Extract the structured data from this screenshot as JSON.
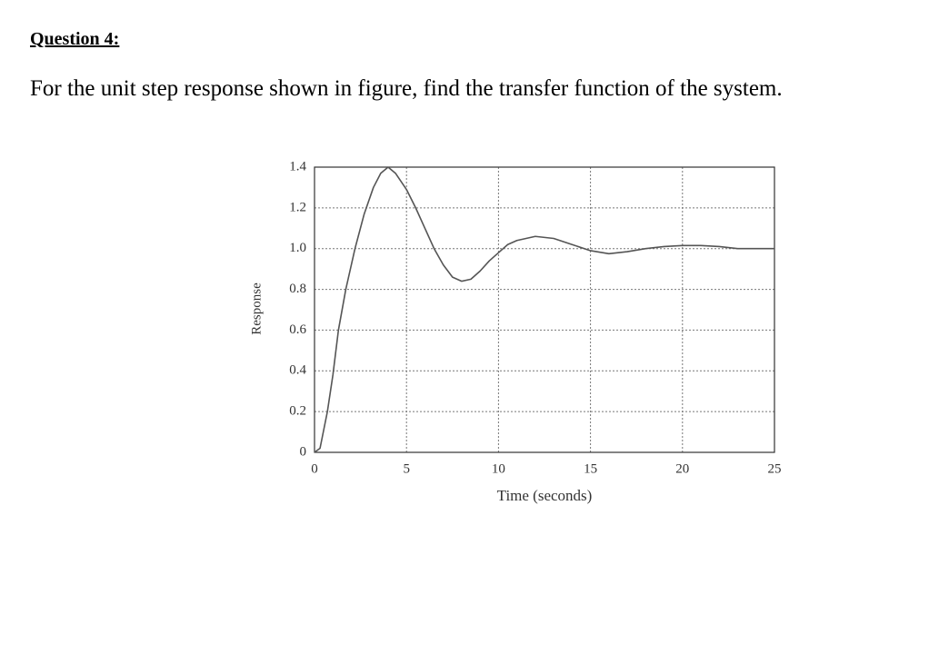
{
  "header": {
    "title": "Question 4:"
  },
  "question": "For the unit step response shown in figure, find the transfer function of the system.",
  "chart_data": {
    "type": "line",
    "xlabel": "Time (seconds)",
    "ylabel": "Response",
    "x": [
      0,
      0.3,
      0.7,
      1,
      1.3,
      1.7,
      2.2,
      2.7,
      3.2,
      3.6,
      4,
      4.4,
      5,
      5.5,
      6,
      6.5,
      7,
      7.5,
      8,
      8.5,
      9,
      9.5,
      10,
      10.5,
      11,
      12,
      13,
      14,
      15,
      16,
      17,
      18,
      19,
      20,
      21,
      22,
      23,
      24,
      25
    ],
    "series": [
      {
        "color": "#555555",
        "values": [
          0,
          0.02,
          0.2,
          0.38,
          0.6,
          0.8,
          1.0,
          1.17,
          1.3,
          1.37,
          1.4,
          1.37,
          1.29,
          1.2,
          1.1,
          1.0,
          0.92,
          0.86,
          0.84,
          0.85,
          0.89,
          0.94,
          0.98,
          1.02,
          1.04,
          1.06,
          1.05,
          1.02,
          0.99,
          0.975,
          0.985,
          1.0,
          1.01,
          1.015,
          1.015,
          1.01,
          1.0,
          1.0,
          1.0
        ]
      }
    ],
    "xlim": [
      0,
      25
    ],
    "xticks": [
      0,
      5,
      10,
      15,
      20,
      25
    ],
    "ylim": [
      0,
      1.4
    ],
    "yticks": [
      0,
      0.2,
      0.4,
      0.6,
      0.8,
      {
        "value": 1,
        "label": "1.0"
      },
      1.2,
      1.4
    ],
    "grid": true
  }
}
